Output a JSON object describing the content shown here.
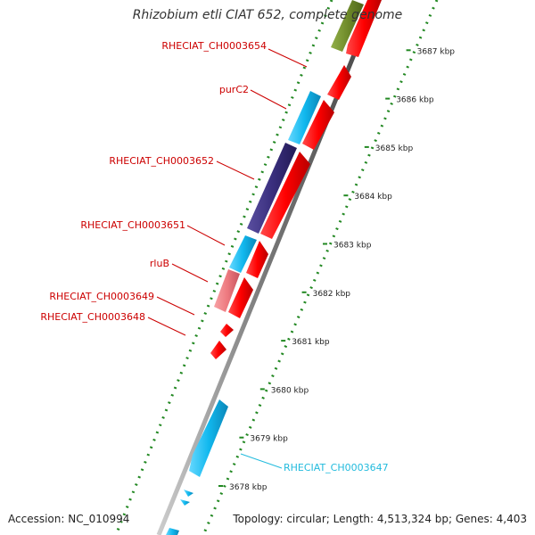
{
  "title": "Rhizobium etli CIAT 652, complete genome",
  "footer": {
    "accession_label": "Accession: ",
    "accession": "NC_010994",
    "topology_label": "Topology: ",
    "topology": "circular",
    "length_label": "; Length: ",
    "length": "4,513,324 bp",
    "genes_label": "; Genes: ",
    "genes": "4,403"
  },
  "ticks": [
    "3678 kbp",
    "3679 kbp",
    "3680 kbp",
    "3681 kbp",
    "3682 kbp",
    "3683 kbp",
    "3684 kbp",
    "3685 kbp",
    "3686 kbp",
    "3687 kbp"
  ],
  "genes": [
    {
      "name": "RHECIAT_CH0003654",
      "color": "#cc0000"
    },
    {
      "name": "purC2",
      "color": "#cc0000"
    },
    {
      "name": "RHECIAT_CH0003652",
      "color": "#cc0000"
    },
    {
      "name": "RHECIAT_CH0003651",
      "color": "#cc0000"
    },
    {
      "name": "rluB",
      "color": "#cc0000"
    },
    {
      "name": "RHECIAT_CH0003649",
      "color": "#cc0000"
    },
    {
      "name": "RHECIAT_CH0003648",
      "color": "#cc0000"
    },
    {
      "name": "RHECIAT_CH0003647",
      "color": "#22bbdd"
    }
  ],
  "colors": {
    "forward_strand": "#ee1111",
    "cyan_gene": "#22bbee",
    "purple_gene": "#3a2f7e",
    "pink_gene": "#ee7a80",
    "olive_gene": "#6f8b2a",
    "gc_dots": "#228822",
    "backbone": "#888888"
  }
}
